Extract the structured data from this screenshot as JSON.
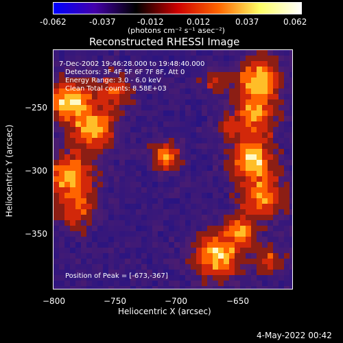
{
  "colorbar": {
    "ticks": [
      "-0.062",
      "-0.037",
      "-0.012",
      "0.012",
      "0.037",
      "0.062"
    ],
    "units": "(photons cm⁻² s⁻¹ asec⁻²)",
    "colors": [
      "#0000ff",
      "#4400aa",
      "#000000",
      "#cc0000",
      "#ff6600",
      "#ffff66",
      "#ffffff"
    ]
  },
  "plot": {
    "title": "Reconstructed RHESSI Image",
    "xlabel": "Heliocentric X (arcsec)",
    "ylabel": "Heliocentric Y (arcsec)",
    "xticks": [
      "−800",
      "−750",
      "−700",
      "−650"
    ],
    "yticks": [
      "−250",
      "−300",
      "−350"
    ],
    "info_lines": [
      "7-Dec-2002 19:46:28.000 to 19:48:40.000",
      "Detectors: 3F 4F 5F 6F 7F 8F, Att 0",
      "Energy Range: 3.0 - 6.0 keV",
      "Clean    Total counts: 8.58E+03"
    ],
    "peak_label": "Position of Peak = [-673,-367]"
  },
  "footer": {
    "timestamp": "4-May-2022 00:42"
  }
}
